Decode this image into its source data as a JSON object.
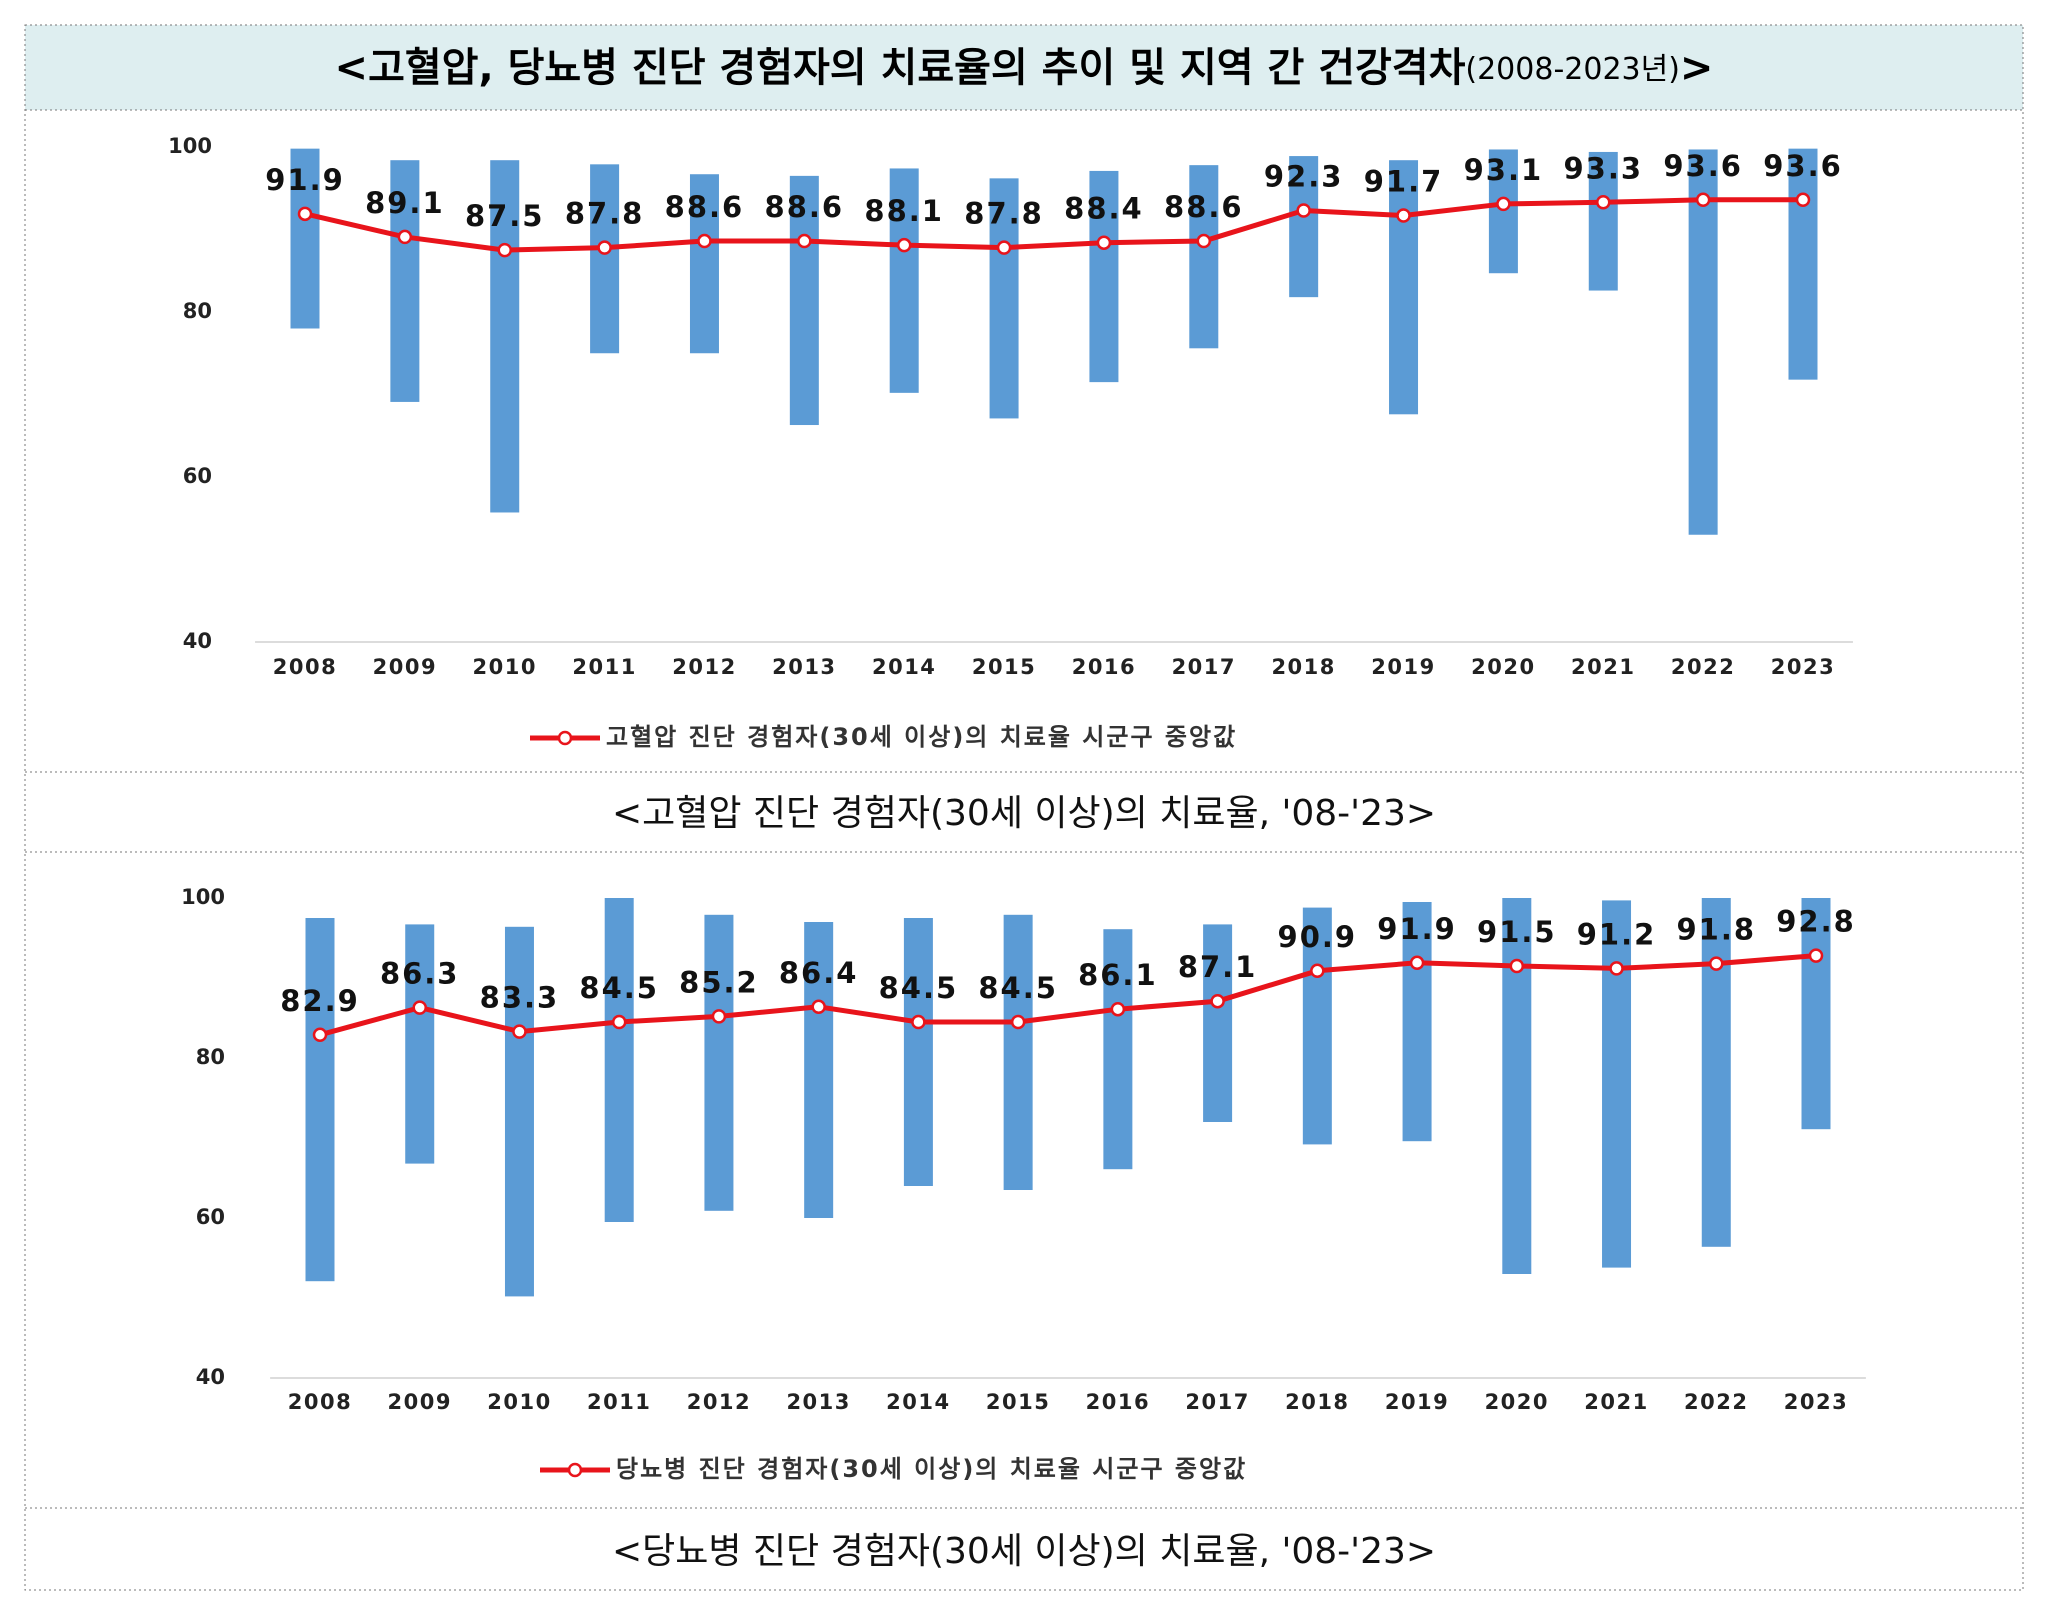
{
  "header": {
    "title": "<고혈압, 당뇨병 진단 경험자의 치료율의 추이 및 지역 간 건강격차",
    "title_note": "(2008-2023년)",
    "title_end": ">"
  },
  "chart_data": [
    {
      "type": "bar-line",
      "categories": [
        "2008",
        "2009",
        "2010",
        "2011",
        "2012",
        "2013",
        "2014",
        "2015",
        "2016",
        "2017",
        "2018",
        "2019",
        "2020",
        "2021",
        "2022",
        "2023"
      ],
      "bar_high": [
        99.8,
        98.4,
        98.4,
        97.9,
        96.7,
        96.5,
        97.4,
        96.2,
        97.1,
        97.8,
        98.9,
        98.4,
        99.7,
        99.4,
        99.7,
        99.8
      ],
      "bar_low": [
        78.0,
        69.1,
        55.7,
        75.0,
        75.0,
        66.3,
        70.2,
        67.1,
        71.5,
        75.6,
        81.8,
        67.6,
        84.7,
        82.6,
        53.0,
        71.8
      ],
      "bar_color": "#5b9bd5",
      "series": [
        {
          "name": "고혈압 진단 경험자(30세 이상)의 치료율 시군구 중앙값",
          "color": "#e8141b",
          "values": [
            91.9,
            89.1,
            87.5,
            87.8,
            88.6,
            88.6,
            88.1,
            87.8,
            88.4,
            88.6,
            92.3,
            91.7,
            93.1,
            93.3,
            93.6,
            93.6
          ]
        }
      ],
      "ylim": [
        40,
        100
      ],
      "yticks": [
        40,
        60,
        80,
        100
      ],
      "caption": "<고혈압 진단 경험자(30세 이상)의 치료율, '08-'23>"
    },
    {
      "type": "bar-line",
      "categories": [
        "2008",
        "2009",
        "2010",
        "2011",
        "2012",
        "2013",
        "2014",
        "2015",
        "2016",
        "2017",
        "2018",
        "2019",
        "2020",
        "2021",
        "2022",
        "2023"
      ],
      "bar_high": [
        97.5,
        96.7,
        96.4,
        100,
        97.9,
        97.0,
        97.5,
        97.9,
        96.1,
        96.7,
        98.8,
        99.5,
        100,
        99.7,
        100,
        100
      ],
      "bar_low": [
        52.1,
        66.8,
        50.2,
        59.5,
        60.9,
        60.0,
        64.0,
        63.5,
        66.1,
        72.0,
        69.2,
        69.6,
        53.0,
        53.8,
        56.4,
        71.1
      ],
      "bar_color": "#5b9bd5",
      "series": [
        {
          "name": "당뇨병 진단 경험자(30세 이상)의 치료율 시군구 중앙값",
          "color": "#e8141b",
          "values": [
            82.9,
            86.3,
            83.3,
            84.5,
            85.2,
            86.4,
            84.5,
            84.5,
            86.1,
            87.1,
            90.9,
            91.9,
            91.5,
            91.2,
            91.8,
            92.8
          ]
        }
      ],
      "ylim": [
        40,
        100
      ],
      "yticks": [
        40,
        60,
        80,
        100
      ],
      "caption": "<당뇨병 진단 경험자(30세 이상)의 치료율, '08-'23>"
    }
  ]
}
